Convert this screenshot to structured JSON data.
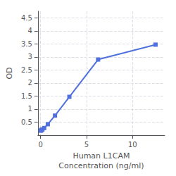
{
  "chart_data": {
    "type": "line",
    "xlabel": "Human L1CAM\nConcentration (ng/ml)",
    "ylabel": "OD",
    "x": [
      0.0,
      0.04883,
      0.09766,
      0.1953,
      0.3906,
      0.7813,
      1.5625,
      3.125,
      6.25,
      12.5
    ],
    "values": [
      0.172,
      0.184,
      0.202,
      0.22,
      0.275,
      0.42,
      0.75,
      1.47,
      2.9,
      3.47
    ],
    "xlim": [
      -0.3,
      13.5
    ],
    "xticks": [
      0,
      5,
      10
    ],
    "ylim": [
      0.0,
      4.75
    ],
    "yticks": [
      0.5,
      1,
      1.5,
      2,
      2.5,
      3,
      3.5,
      4,
      4.5
    ],
    "grid": true,
    "marker": "square"
  }
}
